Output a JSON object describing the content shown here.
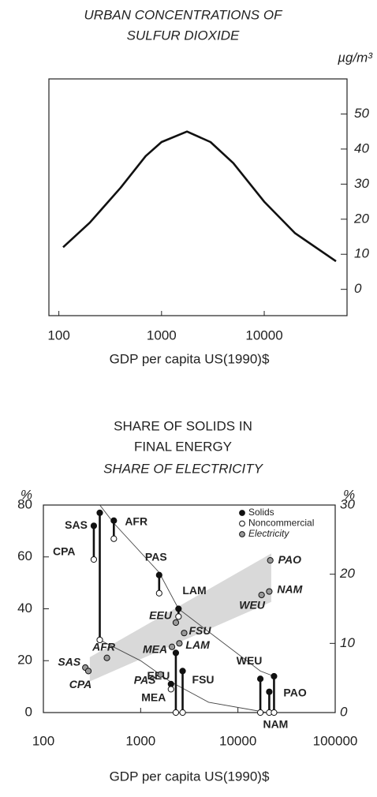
{
  "chart_data": [
    {
      "type": "line",
      "title": [
        "URBAN CONCENTRATIONS OF",
        "SULFUR DIOXIDE"
      ],
      "y_unit": "µg/m³",
      "xlabel": "GDP per capita US(1990)$",
      "xscale": "log",
      "x": [
        110,
        200,
        400,
        700,
        1000,
        1770,
        3000,
        5000,
        10000,
        20000,
        50000
      ],
      "values": [
        12,
        19,
        29,
        38,
        42,
        45,
        42,
        36,
        25,
        16,
        8
      ],
      "color": "#111111",
      "xlim": [
        80,
        64000
      ],
      "xticks": [
        100,
        1000,
        10000
      ],
      "ylim": [
        -7.5,
        60
      ],
      "yticks": [
        0,
        10,
        20,
        30,
        40,
        50
      ],
      "yaxis": "right"
    },
    {
      "type": "scatter",
      "title": [
        "SHARE OF SOLIDS IN",
        "FINAL ENERGY"
      ],
      "subtitle": "SHARE OF ELECTRICITY",
      "ylabel": "%",
      "y2label": "%",
      "xlabel": "GDP per capita US(1990)$",
      "xscale": "log",
      "xlim": [
        100,
        100000
      ],
      "xticks": [
        100,
        1000,
        10000,
        100000
      ],
      "ylim": [
        0,
        80
      ],
      "yticks": [
        0,
        20,
        40,
        60,
        80
      ],
      "y2lim": [
        0,
        30
      ],
      "y2ticks": [
        0,
        10,
        20,
        30
      ],
      "legend": "top-right",
      "series": [
        {
          "name": "Solids",
          "color": "#111111",
          "labels": [
            "SAS",
            "CPA",
            "AFR",
            "PAS",
            "LAM",
            "EEU",
            "MEA",
            "FSU",
            "WEU",
            "NAM",
            "PAO"
          ],
          "x": [
            330,
            380,
            530,
            1550,
            2450,
            2300,
            2050,
            2700,
            17000,
            21000,
            23500
          ],
          "values": [
            72,
            77,
            74,
            53,
            40,
            23,
            11,
            16,
            13,
            8,
            14
          ]
        },
        {
          "name": "Noncommercial",
          "color": "#ffffff",
          "x": [
            330,
            380,
            530,
            1550,
            2450,
            2300,
            2050,
            2700,
            17000,
            21000,
            23500
          ],
          "values": [
            59,
            28,
            67,
            46,
            37,
            0,
            9,
            0,
            0,
            0,
            0
          ]
        },
        {
          "name": "Electricity",
          "color": "#9a9a9a",
          "axis": "y2",
          "labels": [
            "SAS",
            "CPA",
            "AFR",
            "PAS",
            "MEA",
            "EEU",
            "FSU",
            "LAM",
            "WEU",
            "NAM",
            "PAO"
          ],
          "x": [
            270,
            290,
            450,
            1600,
            2100,
            2300,
            2800,
            2500,
            17500,
            21000,
            21500
          ],
          "values": [
            6.5,
            6.0,
            7.9,
            5.5,
            9.5,
            13,
            11.5,
            10,
            17,
            17.5,
            22
          ]
        }
      ],
      "trend_lines": [
        {
          "x": [
            380,
            530,
            1550,
            2450,
            17000,
            23500
          ],
          "values": [
            80,
            73,
            54,
            40,
            16,
            14
          ]
        },
        {
          "x": [
            380,
            1000,
            2000,
            5000,
            20000
          ],
          "values": [
            28,
            20,
            12,
            4,
            0
          ]
        }
      ],
      "band": {
        "color": "#d9d9d9",
        "x": [
          300,
          22000
        ],
        "lower": [
          4.5,
          16
        ],
        "upper": [
          8,
          23
        ]
      }
    }
  ]
}
